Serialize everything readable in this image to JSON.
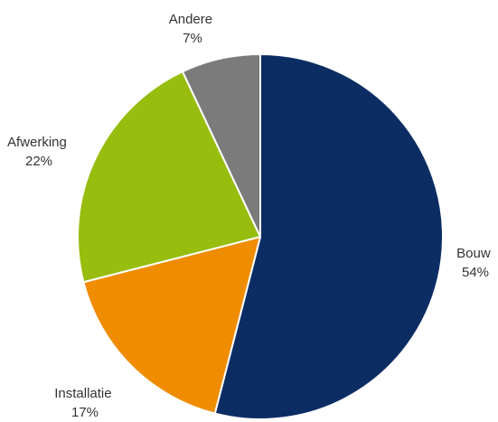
{
  "chart_data": {
    "type": "pie",
    "slices": [
      {
        "label": "Bouw",
        "value": 54,
        "value_text": "54%",
        "color": "#0c2d63"
      },
      {
        "label": "Installatie",
        "value": 17,
        "value_text": "17%",
        "color": "#ef8c00"
      },
      {
        "label": "Afwerking",
        "value": 22,
        "value_text": "22%",
        "color": "#97bd0f"
      },
      {
        "label": "Andere",
        "value": 7,
        "value_text": "7%",
        "color": "#7b7b7b"
      }
    ],
    "start": "12 o'clock",
    "direction": "clockwise",
    "legend": "none"
  }
}
